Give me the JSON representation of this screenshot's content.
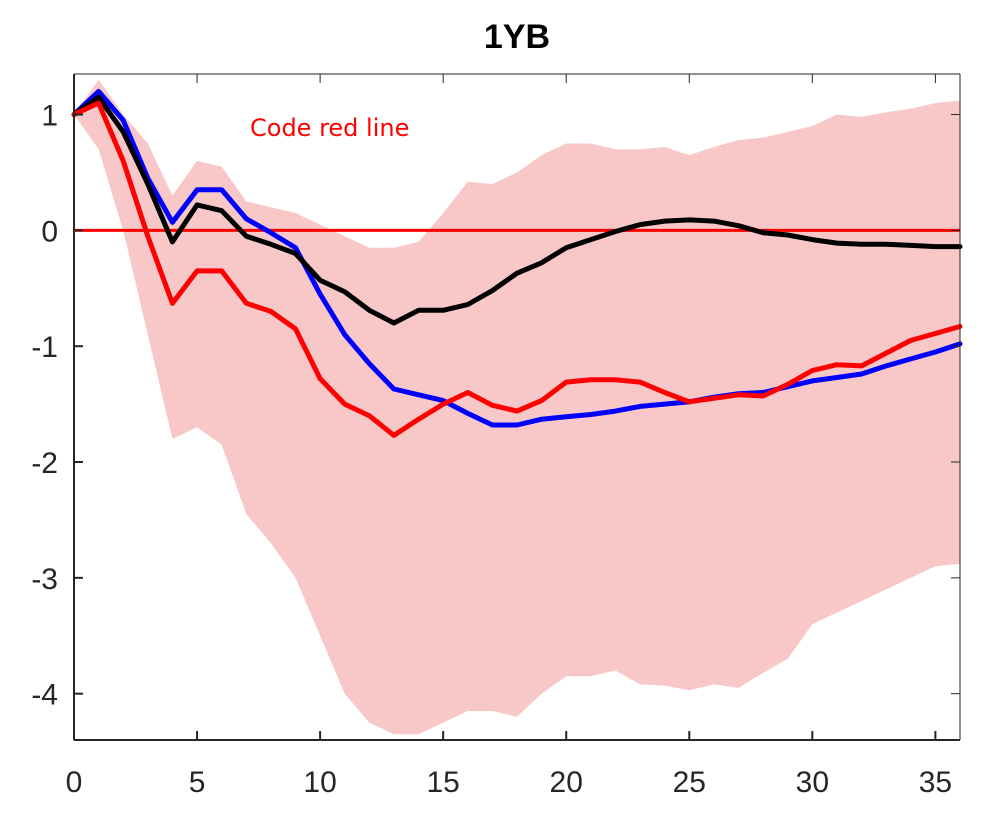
{
  "chart_data": {
    "type": "line",
    "title": "1YB",
    "xlabel": "",
    "ylabel": "",
    "xlim": [
      0,
      36
    ],
    "ylim": [
      -4.4,
      1.35
    ],
    "xticks": [
      "0",
      "5",
      "10",
      "15",
      "20",
      "25",
      "30",
      "35"
    ],
    "xtick_values": [
      0,
      5,
      10,
      15,
      20,
      25,
      30,
      35
    ],
    "yticks": [
      "1",
      "0",
      "-1",
      "-2",
      "-3",
      "-4"
    ],
    "ytick_values": [
      1,
      0,
      -1,
      -2,
      -3,
      -4
    ],
    "grid": false,
    "annotation": {
      "text": "Code red line",
      "color": "#ff0000"
    },
    "reference_line": {
      "y": 0,
      "color": "#ff0000"
    },
    "band": {
      "color": "#f8c8c8",
      "x": [
        0,
        1,
        2,
        3,
        4,
        5,
        6,
        7,
        8,
        9,
        10,
        11,
        12,
        13,
        14,
        15,
        16,
        17,
        18,
        19,
        20,
        21,
        22,
        23,
        24,
        25,
        26,
        27,
        28,
        29,
        30,
        31,
        32,
        33,
        34,
        35,
        36
      ],
      "upper": [
        1.0,
        1.3,
        1.0,
        0.75,
        0.3,
        0.6,
        0.55,
        0.25,
        0.2,
        0.15,
        0.05,
        -0.05,
        -0.15,
        -0.15,
        -0.1,
        0.15,
        0.42,
        0.4,
        0.5,
        0.65,
        0.75,
        0.75,
        0.7,
        0.7,
        0.72,
        0.65,
        0.72,
        0.78,
        0.8,
        0.85,
        0.9,
        1.0,
        0.98,
        1.02,
        1.05,
        1.1,
        1.12
      ],
      "lower": [
        1.0,
        0.7,
        0.0,
        -0.9,
        -1.8,
        -1.7,
        -1.85,
        -2.45,
        -2.7,
        -3.0,
        -3.5,
        -4.0,
        -4.25,
        -4.35,
        -4.35,
        -4.25,
        -4.15,
        -4.15,
        -4.2,
        -4.0,
        -3.85,
        -3.85,
        -3.8,
        -3.92,
        -3.93,
        -3.97,
        -3.92,
        -3.95,
        -3.82,
        -3.7,
        -3.4,
        -3.3,
        -3.2,
        -3.1,
        -3.0,
        -2.9,
        -2.88
      ]
    },
    "series": [
      {
        "color": "#0000ff",
        "x": [
          0,
          1,
          2,
          3,
          4,
          5,
          6,
          7,
          8,
          9,
          10,
          11,
          12,
          13,
          14,
          15,
          16,
          17,
          18,
          19,
          20,
          21,
          22,
          23,
          24,
          25,
          26,
          27,
          28,
          29,
          30,
          31,
          32,
          33,
          34,
          35,
          36
        ],
        "values": [
          1.0,
          1.2,
          0.95,
          0.45,
          0.07,
          0.35,
          0.35,
          0.1,
          -0.02,
          -0.15,
          -0.55,
          -0.9,
          -1.15,
          -1.37,
          -1.42,
          -1.47,
          -1.58,
          -1.68,
          -1.68,
          -1.63,
          -1.61,
          -1.59,
          -1.56,
          -1.52,
          -1.5,
          -1.48,
          -1.44,
          -1.41,
          -1.4,
          -1.35,
          -1.3,
          -1.27,
          -1.24,
          -1.17,
          -1.11,
          -1.05,
          -0.98
        ]
      },
      {
        "color": "#000000",
        "x": [
          0,
          1,
          2,
          3,
          4,
          5,
          6,
          7,
          8,
          9,
          10,
          11,
          12,
          13,
          14,
          15,
          16,
          17,
          18,
          19,
          20,
          21,
          22,
          23,
          24,
          25,
          26,
          27,
          28,
          29,
          30,
          31,
          32,
          33,
          34,
          35,
          36
        ],
        "values": [
          1.0,
          1.15,
          0.85,
          0.4,
          -0.1,
          0.22,
          0.17,
          -0.05,
          -0.12,
          -0.2,
          -0.43,
          -0.53,
          -0.69,
          -0.8,
          -0.69,
          -0.69,
          -0.64,
          -0.52,
          -0.37,
          -0.28,
          -0.15,
          -0.08,
          -0.01,
          0.05,
          0.08,
          0.09,
          0.08,
          0.04,
          -0.02,
          -0.04,
          -0.08,
          -0.11,
          -0.12,
          -0.12,
          -0.13,
          -0.14,
          -0.14
        ]
      },
      {
        "color": "#ff0000",
        "x": [
          0,
          1,
          2,
          3,
          4,
          5,
          6,
          7,
          8,
          9,
          10,
          11,
          12,
          13,
          14,
          15,
          16,
          17,
          18,
          19,
          20,
          21,
          22,
          23,
          24,
          25,
          26,
          27,
          28,
          29,
          30,
          31,
          32,
          33,
          34,
          35,
          36
        ],
        "values": [
          1.0,
          1.1,
          0.6,
          -0.05,
          -0.63,
          -0.35,
          -0.35,
          -0.63,
          -0.7,
          -0.85,
          -1.28,
          -1.5,
          -1.6,
          -1.77,
          -1.63,
          -1.5,
          -1.4,
          -1.51,
          -1.56,
          -1.47,
          -1.31,
          -1.29,
          -1.29,
          -1.31,
          -1.4,
          -1.48,
          -1.45,
          -1.42,
          -1.43,
          -1.33,
          -1.21,
          -1.16,
          -1.17,
          -1.06,
          -0.95,
          -0.89,
          -0.83
        ]
      }
    ]
  }
}
